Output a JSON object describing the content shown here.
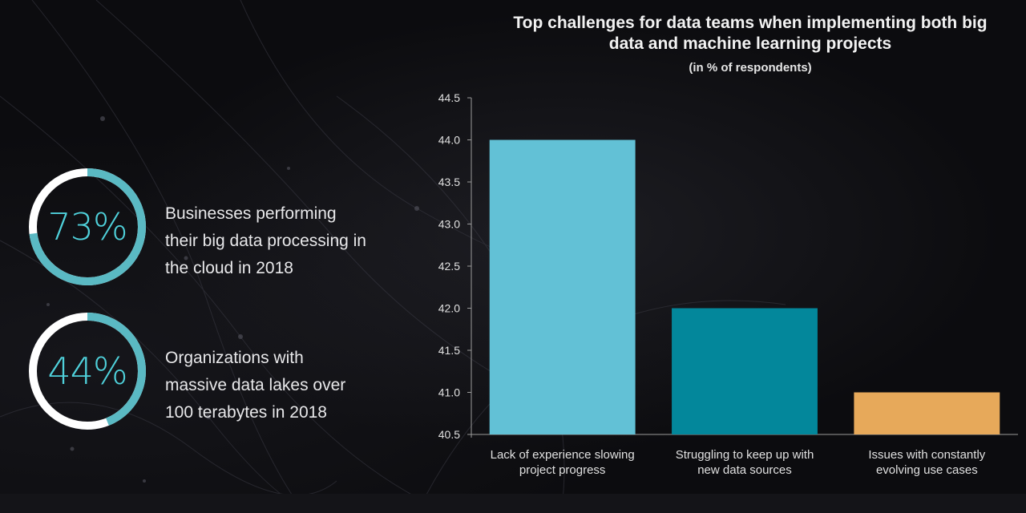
{
  "stats": [
    {
      "value_label": "73%",
      "value": 73,
      "description": "Businesses performing\ntheir big data processing in\nthe cloud in 2018"
    },
    {
      "value_label": "44%",
      "value": 44,
      "description": "Organizations  with\nmassive data lakes over\n100 terabytes in 2018"
    }
  ],
  "colors": {
    "ring_accent": "#5ab9c3",
    "ring_track": "#ffffff",
    "stat_text": "#4fd1db",
    "bar_1": "#62c1d6",
    "bar_2": "#03879b",
    "bar_3": "#e7a95a",
    "axis": "#9a9a9a",
    "tick_text": "#e0e0e0"
  },
  "chart_data": {
    "type": "bar",
    "title": "Top challenges for data teams when implementing both big\ndata and machine learning projects",
    "subtitle": "(in % of respondents)",
    "xlabel": "",
    "ylabel": "",
    "categories": [
      "Lack of experience slowing project progress",
      "Struggling to keep up with new data sources",
      "Issues with constantly evolving use cases"
    ],
    "category_lines": [
      [
        "Lack of experience slowing",
        "project progress"
      ],
      [
        "Struggling to keep up with",
        "new data sources"
      ],
      [
        "Issues with constantly",
        "evolving use cases"
      ]
    ],
    "values": [
      44,
      42,
      41
    ],
    "ylim": [
      40.5,
      44.5
    ],
    "yticks": [
      "40.5",
      "41.0",
      "41.5",
      "42.0",
      "42.5",
      "43.0",
      "43.5",
      "44.0",
      "44.5"
    ],
    "grid": false,
    "legend": "none"
  }
}
